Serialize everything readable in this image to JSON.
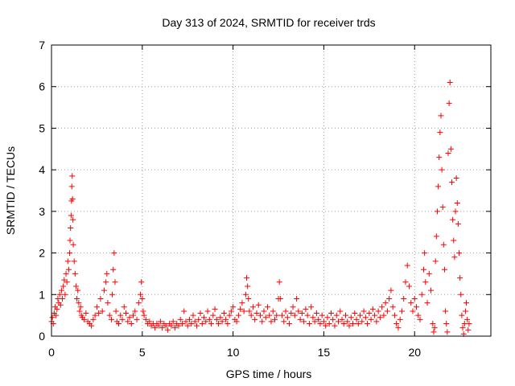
{
  "chart_data": {
    "type": "scatter",
    "title": "Day 313 of 2024, SRMTID for receiver trds",
    "xlabel": "GPS time / hours",
    "ylabel": "SRMTID / TECUs",
    "xlim": [
      0,
      24.2
    ],
    "ylim": [
      0,
      7
    ],
    "x_ticks": [
      0,
      5,
      10,
      15,
      20
    ],
    "x_tick_labels": [
      "0",
      "5",
      "10",
      "15",
      "20"
    ],
    "y_ticks": [
      0,
      1,
      2,
      3,
      4,
      5,
      6,
      7
    ],
    "y_tick_labels": [
      "0",
      "1",
      "2",
      "3",
      "4",
      "5",
      "6",
      "7"
    ],
    "grid": true,
    "marker": "+",
    "point_color": "#ff0000",
    "series": [
      {
        "name": "SRMTID",
        "points": [
          [
            0.0,
            0.35
          ],
          [
            0.05,
            0.45
          ],
          [
            0.1,
            0.3
          ],
          [
            0.15,
            0.55
          ],
          [
            0.2,
            0.7
          ],
          [
            0.25,
            0.5
          ],
          [
            0.3,
            0.65
          ],
          [
            0.35,
            0.9
          ],
          [
            0.4,
            0.8
          ],
          [
            0.45,
            1.0
          ],
          [
            0.5,
            0.75
          ],
          [
            0.55,
            1.1
          ],
          [
            0.6,
            0.9
          ],
          [
            0.65,
            1.2
          ],
          [
            0.7,
            1.35
          ],
          [
            0.75,
            1.0
          ],
          [
            0.8,
            1.5
          ],
          [
            0.85,
            1.3
          ],
          [
            0.9,
            1.8
          ],
          [
            0.95,
            1.6
          ],
          [
            1.0,
            2.0
          ],
          [
            1.02,
            2.3
          ],
          [
            1.05,
            2.6
          ],
          [
            1.08,
            2.9
          ],
          [
            1.1,
            3.25
          ],
          [
            1.12,
            3.6
          ],
          [
            1.14,
            3.85
          ],
          [
            1.16,
            3.3
          ],
          [
            1.18,
            2.8
          ],
          [
            1.2,
            2.2
          ],
          [
            1.25,
            1.8
          ],
          [
            1.3,
            1.5
          ],
          [
            1.35,
            1.2
          ],
          [
            1.4,
            0.9
          ],
          [
            1.45,
            1.1
          ],
          [
            1.5,
            0.8
          ],
          [
            1.55,
            0.6
          ],
          [
            1.6,
            0.7
          ],
          [
            1.65,
            0.5
          ],
          [
            1.7,
            0.45
          ],
          [
            1.8,
            0.4
          ],
          [
            1.9,
            0.55
          ],
          [
            2.0,
            0.35
          ],
          [
            2.1,
            0.3
          ],
          [
            2.2,
            0.25
          ],
          [
            2.3,
            0.4
          ],
          [
            2.4,
            0.5
          ],
          [
            2.5,
            0.7
          ],
          [
            2.6,
            0.55
          ],
          [
            2.7,
            0.9
          ],
          [
            2.8,
            0.6
          ],
          [
            2.9,
            1.1
          ],
          [
            3.0,
            1.3
          ],
          [
            3.05,
            1.5
          ],
          [
            3.1,
            0.8
          ],
          [
            3.2,
            0.5
          ],
          [
            3.3,
            0.4
          ],
          [
            3.35,
            1.0
          ],
          [
            3.4,
            1.6
          ],
          [
            3.45,
            2.0
          ],
          [
            3.5,
            1.3
          ],
          [
            3.55,
            0.6
          ],
          [
            3.6,
            0.35
          ],
          [
            3.7,
            0.3
          ],
          [
            3.8,
            0.5
          ],
          [
            3.9,
            0.4
          ],
          [
            4.0,
            0.7
          ],
          [
            4.1,
            0.55
          ],
          [
            4.2,
            0.35
          ],
          [
            4.3,
            0.45
          ],
          [
            4.4,
            0.3
          ],
          [
            4.5,
            0.5
          ],
          [
            4.6,
            0.6
          ],
          [
            4.7,
            0.4
          ],
          [
            4.8,
            0.8
          ],
          [
            4.9,
            1.0
          ],
          [
            4.95,
            1.3
          ],
          [
            5.0,
            0.9
          ],
          [
            5.05,
            0.6
          ],
          [
            5.1,
            0.5
          ],
          [
            5.2,
            0.4
          ],
          [
            5.3,
            0.3
          ],
          [
            5.4,
            0.35
          ],
          [
            5.5,
            0.25
          ],
          [
            5.6,
            0.3
          ],
          [
            5.7,
            0.2
          ],
          [
            5.8,
            0.3
          ],
          [
            5.9,
            0.25
          ],
          [
            6.0,
            0.35
          ],
          [
            6.1,
            0.2
          ],
          [
            6.2,
            0.3
          ],
          [
            6.3,
            0.25
          ],
          [
            6.4,
            0.15
          ],
          [
            6.5,
            0.3
          ],
          [
            6.6,
            0.25
          ],
          [
            6.7,
            0.35
          ],
          [
            6.8,
            0.2
          ],
          [
            6.9,
            0.3
          ],
          [
            7.0,
            0.25
          ],
          [
            7.1,
            0.4
          ],
          [
            7.2,
            0.3
          ],
          [
            7.3,
            0.6
          ],
          [
            7.4,
            0.35
          ],
          [
            7.5,
            0.25
          ],
          [
            7.6,
            0.4
          ],
          [
            7.7,
            0.3
          ],
          [
            7.8,
            0.5
          ],
          [
            7.9,
            0.35
          ],
          [
            8.0,
            0.25
          ],
          [
            8.1,
            0.4
          ],
          [
            8.2,
            0.55
          ],
          [
            8.3,
            0.3
          ],
          [
            8.4,
            0.45
          ],
          [
            8.5,
            0.35
          ],
          [
            8.6,
            0.6
          ],
          [
            8.7,
            0.4
          ],
          [
            8.8,
            0.3
          ],
          [
            8.9,
            0.5
          ],
          [
            9.0,
            0.65
          ],
          [
            9.1,
            0.4
          ],
          [
            9.2,
            0.3
          ],
          [
            9.3,
            0.45
          ],
          [
            9.4,
            0.35
          ],
          [
            9.5,
            0.55
          ],
          [
            9.6,
            0.4
          ],
          [
            9.7,
            0.3
          ],
          [
            9.8,
            0.5
          ],
          [
            9.9,
            0.6
          ],
          [
            10.0,
            0.7
          ],
          [
            10.1,
            0.4
          ],
          [
            10.2,
            0.35
          ],
          [
            10.3,
            0.5
          ],
          [
            10.4,
            0.65
          ],
          [
            10.5,
            0.8
          ],
          [
            10.6,
            0.6
          ],
          [
            10.7,
            1.0
          ],
          [
            10.75,
            1.4
          ],
          [
            10.8,
            1.2
          ],
          [
            10.85,
            0.9
          ],
          [
            10.9,
            0.6
          ],
          [
            11.0,
            0.5
          ],
          [
            11.1,
            0.7
          ],
          [
            11.2,
            0.4
          ],
          [
            11.3,
            0.55
          ],
          [
            11.4,
            0.75
          ],
          [
            11.5,
            0.5
          ],
          [
            11.6,
            0.35
          ],
          [
            11.7,
            0.6
          ],
          [
            11.8,
            0.45
          ],
          [
            11.9,
            0.7
          ],
          [
            12.0,
            0.5
          ],
          [
            12.1,
            0.35
          ],
          [
            12.2,
            0.6
          ],
          [
            12.3,
            0.4
          ],
          [
            12.4,
            0.5
          ],
          [
            12.5,
            0.9
          ],
          [
            12.55,
            1.3
          ],
          [
            12.6,
            0.9
          ],
          [
            12.7,
            0.5
          ],
          [
            12.8,
            0.35
          ],
          [
            12.9,
            0.6
          ],
          [
            13.0,
            0.45
          ],
          [
            13.1,
            0.3
          ],
          [
            13.2,
            0.55
          ],
          [
            13.3,
            0.7
          ],
          [
            13.4,
            0.5
          ],
          [
            13.5,
            0.9
          ],
          [
            13.6,
            0.6
          ],
          [
            13.7,
            0.4
          ],
          [
            13.8,
            0.55
          ],
          [
            13.9,
            0.35
          ],
          [
            14.0,
            0.65
          ],
          [
            14.1,
            0.5
          ],
          [
            14.2,
            0.3
          ],
          [
            14.3,
            0.7
          ],
          [
            14.4,
            0.45
          ],
          [
            14.5,
            0.35
          ],
          [
            14.6,
            0.55
          ],
          [
            14.7,
            0.4
          ],
          [
            14.8,
            0.3
          ],
          [
            14.9,
            0.5
          ],
          [
            15.0,
            0.35
          ],
          [
            15.1,
            0.25
          ],
          [
            15.2,
            0.45
          ],
          [
            15.3,
            0.3
          ],
          [
            15.4,
            0.55
          ],
          [
            15.5,
            0.4
          ],
          [
            15.6,
            0.25
          ],
          [
            15.7,
            0.5
          ],
          [
            15.8,
            0.35
          ],
          [
            15.9,
            0.6
          ],
          [
            16.0,
            0.4
          ],
          [
            16.1,
            0.3
          ],
          [
            16.2,
            0.5
          ],
          [
            16.3,
            0.35
          ],
          [
            16.4,
            0.25
          ],
          [
            16.5,
            0.45
          ],
          [
            16.6,
            0.3
          ],
          [
            16.7,
            0.55
          ],
          [
            16.8,
            0.4
          ],
          [
            16.9,
            0.3
          ],
          [
            17.0,
            0.5
          ],
          [
            17.1,
            0.35
          ],
          [
            17.2,
            0.6
          ],
          [
            17.3,
            0.45
          ],
          [
            17.4,
            0.3
          ],
          [
            17.5,
            0.55
          ],
          [
            17.6,
            0.4
          ],
          [
            17.7,
            0.65
          ],
          [
            17.8,
            0.5
          ],
          [
            17.9,
            0.35
          ],
          [
            18.0,
            0.6
          ],
          [
            18.1,
            0.45
          ],
          [
            18.2,
            0.7
          ],
          [
            18.3,
            0.5
          ],
          [
            18.4,
            0.8
          ],
          [
            18.5,
            0.6
          ],
          [
            18.6,
            0.9
          ],
          [
            18.7,
            1.1
          ],
          [
            18.8,
            0.7
          ],
          [
            18.9,
            0.5
          ],
          [
            19.0,
            0.3
          ],
          [
            19.1,
            0.2
          ],
          [
            19.2,
            0.4
          ],
          [
            19.3,
            0.6
          ],
          [
            19.4,
            0.9
          ],
          [
            19.5,
            1.3
          ],
          [
            19.6,
            1.7
          ],
          [
            19.7,
            1.2
          ],
          [
            19.8,
            0.8
          ],
          [
            19.9,
            0.6
          ],
          [
            20.0,
            0.9
          ],
          [
            20.1,
            0.7
          ],
          [
            20.2,
            0.5
          ],
          [
            20.3,
            0.4
          ],
          [
            20.4,
            1.0
          ],
          [
            20.5,
            1.6
          ],
          [
            20.55,
            2.0
          ],
          [
            20.6,
            1.3
          ],
          [
            20.7,
            0.8
          ],
          [
            20.8,
            1.5
          ],
          [
            20.9,
            1.1
          ],
          [
            21.0,
            0.3
          ],
          [
            21.05,
            0.1
          ],
          [
            21.1,
            0.2
          ],
          [
            21.15,
            1.8
          ],
          [
            21.2,
            2.4
          ],
          [
            21.25,
            3.0
          ],
          [
            21.3,
            3.6
          ],
          [
            21.35,
            4.3
          ],
          [
            21.4,
            4.9
          ],
          [
            21.45,
            5.3
          ],
          [
            21.5,
            4.0
          ],
          [
            21.55,
            3.1
          ],
          [
            21.6,
            2.2
          ],
          [
            21.65,
            1.6
          ],
          [
            21.7,
            0.6
          ],
          [
            21.75,
            0.3
          ],
          [
            21.8,
            0.1
          ],
          [
            21.85,
            4.4
          ],
          [
            21.9,
            5.6
          ],
          [
            21.95,
            6.1
          ],
          [
            22.0,
            4.5
          ],
          [
            22.05,
            3.7
          ],
          [
            22.1,
            2.8
          ],
          [
            22.15,
            2.3
          ],
          [
            22.2,
            1.9
          ],
          [
            22.25,
            3.0
          ],
          [
            22.3,
            3.8
          ],
          [
            22.35,
            3.2
          ],
          [
            22.4,
            2.7
          ],
          [
            22.45,
            2.0
          ],
          [
            22.5,
            1.4
          ],
          [
            22.55,
            1.0
          ],
          [
            22.6,
            0.5
          ],
          [
            22.65,
            0.2
          ],
          [
            22.7,
            0.05
          ],
          [
            22.75,
            0.3
          ],
          [
            22.8,
            0.6
          ],
          [
            22.85,
            0.8
          ],
          [
            22.9,
            0.4
          ],
          [
            22.95,
            0.15
          ],
          [
            23.0,
            0.3
          ]
        ]
      }
    ]
  }
}
